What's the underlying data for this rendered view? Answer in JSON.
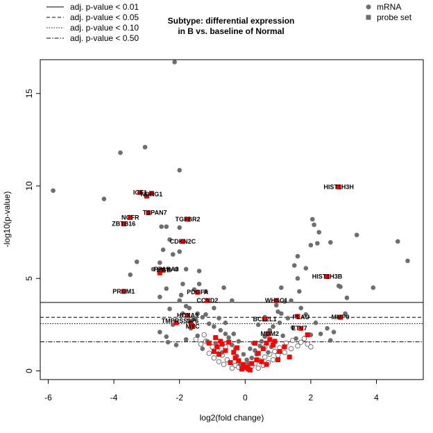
{
  "chart_data": {
    "type": "scatter",
    "title_lines": [
      "Subtype: differential expression",
      "in B vs. baseline of Normal"
    ],
    "xlabel": "log2(fold change)",
    "ylabel": "-log10(p-value)",
    "xlim": [
      -6.35,
      5.25
    ],
    "ylim": [
      -0.25,
      17.0
    ],
    "xticks": [
      "-6",
      "-4",
      "-2",
      "0",
      "2",
      "4"
    ],
    "yticks": [
      "0",
      "5",
      "10",
      "15"
    ],
    "threshold_lines": [
      {
        "label": "adj. p-value < 0.01",
        "y": 3.7,
        "dash": "solid"
      },
      {
        "label": "adj. p-value < 0.05",
        "y": 2.9,
        "dash": "dashed"
      },
      {
        "label": "adj. p-value < 0.10",
        "y": 2.55,
        "dash": "dotted"
      },
      {
        "label": "adj. p-value < 0.50",
        "y": 1.57,
        "dash": "dotdash"
      }
    ],
    "point_legend": [
      {
        "label": "mRNA",
        "shape": "circle",
        "color": "#6e6e6e"
      },
      {
        "label": "probe set",
        "shape": "square",
        "color": "#6e6e6e"
      }
    ],
    "colors": {
      "mrna": "#6e6e6e",
      "probe": "#ff0000",
      "open": "#555555"
    },
    "mrna_points": [
      [
        -2.15,
        16.7
      ],
      [
        -3.8,
        11.8
      ],
      [
        -3.05,
        12.1
      ],
      [
        -5.85,
        9.75
      ],
      [
        -4.3,
        9.3
      ],
      [
        -2.0,
        10.85
      ],
      [
        4.65,
        7.0
      ],
      [
        4.95,
        5.95
      ],
      [
        3.4,
        7.35
      ],
      [
        3.9,
        4.5
      ],
      [
        2.05,
        8.2
      ],
      [
        2.1,
        7.9
      ],
      [
        2.25,
        7.5
      ],
      [
        2.2,
        6.9
      ],
      [
        2.0,
        6.8
      ],
      [
        2.6,
        6.95
      ],
      [
        2.85,
        4.6
      ],
      [
        2.9,
        4.55
      ],
      [
        3.1,
        3.95
      ],
      [
        1.6,
        6.2
      ],
      [
        1.5,
        5.7
      ],
      [
        1.85,
        5.55
      ],
      [
        1.6,
        5.0
      ],
      [
        1.65,
        4.3
      ],
      [
        1.4,
        3.8
      ],
      [
        1.2,
        3.75
      ],
      [
        1.1,
        4.5
      ],
      [
        0.95,
        3.55
      ],
      [
        1.0,
        3.2
      ],
      [
        -2.0,
        7.75
      ],
      [
        -2.4,
        7.8
      ],
      [
        -2.55,
        7.8
      ],
      [
        -2.3,
        7.1
      ],
      [
        -2.0,
        6.45
      ],
      [
        -2.5,
        6.55
      ],
      [
        -2.2,
        6.3
      ],
      [
        -2.6,
        5.85
      ],
      [
        -2.3,
        5.45
      ],
      [
        -1.8,
        5.5
      ],
      [
        -1.4,
        5.4
      ],
      [
        -1.4,
        4.7
      ],
      [
        -1.9,
        4.7
      ],
      [
        -0.65,
        4.5
      ],
      [
        -2.4,
        4.45
      ],
      [
        -1.55,
        4.4
      ],
      [
        -2.6,
        4.0
      ],
      [
        -2.0,
        3.8
      ],
      [
        -1.8,
        3.5
      ],
      [
        -1.7,
        3.4
      ],
      [
        -2.3,
        3.35
      ],
      [
        -1.9,
        3.1
      ],
      [
        -1.75,
        3.0
      ],
      [
        -1.55,
        2.8
      ],
      [
        -1.3,
        2.9
      ],
      [
        -1.1,
        2.55
      ],
      [
        -0.95,
        2.4
      ],
      [
        -0.75,
        2.2
      ],
      [
        -0.6,
        2.0
      ],
      [
        -0.5,
        1.8
      ],
      [
        -1.15,
        1.6
      ],
      [
        -2.6,
        2.1
      ],
      [
        -2.4,
        1.85
      ],
      [
        -1.45,
        1.9
      ],
      [
        -0.9,
        1.5
      ],
      [
        -0.3,
        1.2
      ],
      [
        0.3,
        1.1
      ],
      [
        0.5,
        1.6
      ],
      [
        0.6,
        1.85
      ],
      [
        0.75,
        2.2
      ],
      [
        0.85,
        2.4
      ],
      [
        1.05,
        2.6
      ],
      [
        1.3,
        2.85
      ],
      [
        1.45,
        2.35
      ],
      [
        2.0,
        1.95
      ],
      [
        2.3,
        2.0
      ],
      [
        2.6,
        1.65
      ],
      [
        1.55,
        1.75
      ],
      [
        -0.25,
        0.8
      ],
      [
        0.2,
        0.7
      ],
      [
        0.1,
        0.4
      ],
      [
        -0.15,
        0.35
      ],
      [
        0.35,
        0.9
      ],
      [
        -0.4,
        1.4
      ],
      [
        0.45,
        1.35
      ],
      [
        -0.7,
        1.0
      ],
      [
        0.8,
        1.3
      ],
      [
        1.15,
        1.9
      ],
      [
        -1.2,
        3.05
      ],
      [
        -2.1,
        5.5
      ],
      [
        -1.2,
        4.3
      ],
      [
        -3.3,
        5.9
      ],
      [
        -3.5,
        5.2
      ],
      [
        -2.8,
        5.5
      ],
      [
        0.6,
        2.9
      ],
      [
        1.1,
        3.1
      ],
      [
        0.4,
        2.5
      ],
      [
        -0.35,
        2.0
      ],
      [
        -0.95,
        3.4
      ],
      [
        -0.4,
        3.8
      ],
      [
        0.0,
        0.15
      ],
      [
        0.05,
        0.6
      ],
      [
        -0.05,
        0.9
      ],
      [
        0.25,
        1.5
      ],
      [
        -0.6,
        2.6
      ],
      [
        -1.65,
        2.3
      ],
      [
        -1.8,
        1.7
      ],
      [
        -2.1,
        1.4
      ],
      [
        1.7,
        3.4
      ],
      [
        1.85,
        3.05
      ],
      [
        2.15,
        2.6
      ],
      [
        2.5,
        2.3
      ],
      [
        3.05,
        3.1
      ],
      [
        2.7,
        2.1
      ],
      [
        -0.8,
        2.85
      ],
      [
        -0.2,
        1.6
      ],
      [
        0.15,
        1.2
      ],
      [
        0.7,
        1.0
      ],
      [
        -1.3,
        1.2
      ],
      [
        -2.35,
        1.55
      ],
      [
        -2.2,
        2.5
      ],
      [
        -1.45,
        3.1
      ],
      [
        -1.95,
        4.1
      ]
    ],
    "open_points": [
      [
        -1.2,
        1.6
      ],
      [
        -1.0,
        1.3
      ],
      [
        -0.85,
        1.15
      ],
      [
        -0.7,
        0.85
      ],
      [
        -0.55,
        0.6
      ],
      [
        -0.45,
        0.45
      ],
      [
        -0.3,
        0.3
      ],
      [
        -0.2,
        0.2
      ],
      [
        -0.1,
        0.1
      ],
      [
        0.1,
        0.1
      ],
      [
        0.2,
        0.25
      ],
      [
        0.3,
        0.4
      ],
      [
        0.45,
        0.55
      ],
      [
        0.6,
        0.75
      ],
      [
        0.75,
        0.9
      ],
      [
        0.9,
        1.05
      ],
      [
        1.05,
        1.25
      ],
      [
        1.25,
        1.5
      ],
      [
        1.45,
        1.65
      ],
      [
        1.7,
        1.55
      ],
      [
        1.9,
        1.45
      ],
      [
        2.0,
        1.3
      ],
      [
        -1.5,
        1.7
      ],
      [
        -1.35,
        1.45
      ],
      [
        -1.1,
        0.95
      ],
      [
        -0.95,
        0.7
      ],
      [
        -0.8,
        0.5
      ],
      [
        -0.65,
        0.35
      ],
      [
        0.55,
        0.3
      ],
      [
        0.7,
        0.45
      ],
      [
        0.85,
        0.6
      ],
      [
        1.0,
        0.85
      ],
      [
        1.2,
        1.0
      ],
      [
        1.4,
        1.2
      ],
      [
        1.6,
        1.35
      ],
      [
        -0.4,
        0.15
      ],
      [
        0.4,
        0.15
      ],
      [
        -1.25,
        1.95
      ],
      [
        1.8,
        1.75
      ],
      [
        -0.6,
        1.3
      ],
      [
        0.6,
        1.3
      ]
    ],
    "probe_points": [
      [
        -3.2,
        9.65
      ],
      [
        -2.85,
        9.6
      ],
      [
        -3.0,
        9.45
      ],
      [
        -2.95,
        8.55
      ],
      [
        -3.5,
        8.3
      ],
      [
        -3.7,
        7.95
      ],
      [
        -1.75,
        8.2
      ],
      [
        -1.9,
        7.0
      ],
      [
        -2.5,
        5.45
      ],
      [
        -2.6,
        5.3
      ],
      [
        -3.7,
        4.3
      ],
      [
        -1.45,
        4.25
      ],
      [
        -1.15,
        3.8
      ],
      [
        -1.75,
        3.0
      ],
      [
        -2.1,
        2.6
      ],
      [
        -1.65,
        2.6
      ],
      [
        -1.6,
        2.4
      ],
      [
        2.85,
        9.95
      ],
      [
        2.5,
        5.1
      ],
      [
        2.9,
        2.9
      ],
      [
        0.95,
        3.8
      ],
      [
        0.6,
        2.8
      ],
      [
        1.6,
        2.95
      ],
      [
        1.7,
        2.3
      ],
      [
        1.9,
        1.95
      ],
      [
        0.7,
        2.0
      ],
      [
        -0.9,
        1.8
      ],
      [
        -0.85,
        1.3
      ],
      [
        -0.7,
        1.45
      ],
      [
        -0.5,
        1.55
      ],
      [
        -0.6,
        1.1
      ],
      [
        -0.35,
        1.0
      ],
      [
        -0.3,
        0.7
      ],
      [
        -0.2,
        0.55
      ],
      [
        -0.05,
        0.35
      ],
      [
        0.05,
        0.2
      ],
      [
        0.1,
        0.1
      ],
      [
        0.15,
        0.05
      ],
      [
        -0.1,
        0.1
      ],
      [
        0.2,
        0.4
      ],
      [
        0.35,
        0.6
      ],
      [
        0.4,
        0.95
      ],
      [
        0.55,
        1.2
      ],
      [
        0.65,
        1.5
      ],
      [
        0.75,
        1.7
      ],
      [
        0.85,
        1.4
      ],
      [
        1.05,
        1.05
      ],
      [
        1.2,
        1.3
      ],
      [
        1.35,
        0.75
      ],
      [
        1.0,
        0.6
      ],
      [
        -0.8,
        0.9
      ],
      [
        -0.45,
        0.45
      ],
      [
        0.5,
        0.5
      ],
      [
        0.65,
        0.35
      ],
      [
        -0.95,
        1.05
      ],
      [
        -0.25,
        1.25
      ],
      [
        0.3,
        1.5
      ],
      [
        0.9,
        1.6
      ],
      [
        -1.1,
        1.5
      ],
      [
        -0.75,
        1.6
      ]
    ],
    "gene_labels": [
      {
        "text": "IGF1",
        "x": -3.2,
        "y": 9.65
      },
      {
        "text": "NDRG1",
        "x": -2.85,
        "y": 9.55
      },
      {
        "text": "TSPAN7",
        "x": -2.75,
        "y": 8.55
      },
      {
        "text": "NGFR",
        "x": -3.5,
        "y": 8.3
      },
      {
        "text": "ZBTB16",
        "x": -3.7,
        "y": 7.95
      },
      {
        "text": "TGFBR2",
        "x": -1.75,
        "y": 8.2
      },
      {
        "text": "CDKN2C",
        "x": -1.9,
        "y": 7.0
      },
      {
        "text": "MET",
        "x": -2.5,
        "y": 5.45
      },
      {
        "text": "PPARA3",
        "x": -2.4,
        "y": 5.5
      },
      {
        "text": "PROM1",
        "x": -3.7,
        "y": 4.3
      },
      {
        "text": "PDGFA",
        "x": -1.45,
        "y": 4.25
      },
      {
        "text": "CCND2",
        "x": -1.15,
        "y": 3.8
      },
      {
        "text": "HOXA9",
        "x": -1.75,
        "y": 3.0
      },
      {
        "text": "TMPRSS2",
        "x": -2.1,
        "y": 2.7
      },
      {
        "text": "SP6",
        "x": -1.6,
        "y": 2.7
      },
      {
        "text": "MYC",
        "x": -1.6,
        "y": 2.4
      },
      {
        "text": "HIST1H3H",
        "x": 2.85,
        "y": 9.95
      },
      {
        "text": "HIST1H3B",
        "x": 2.5,
        "y": 5.1
      },
      {
        "text": "MMP9",
        "x": 2.9,
        "y": 2.9
      },
      {
        "text": "WHSC1",
        "x": 0.95,
        "y": 3.8
      },
      {
        "text": "BCL2L1",
        "x": 0.6,
        "y": 2.8
      },
      {
        "text": "PLAU",
        "x": 1.7,
        "y": 2.9
      },
      {
        "text": "ETV7",
        "x": 1.65,
        "y": 2.3
      },
      {
        "text": "MDM2",
        "x": 0.75,
        "y": 2.0
      }
    ]
  }
}
